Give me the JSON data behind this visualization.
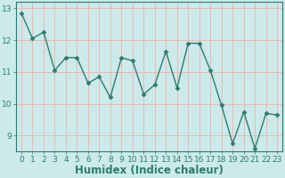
{
  "x": [
    0,
    1,
    2,
    3,
    4,
    5,
    6,
    7,
    8,
    9,
    10,
    11,
    12,
    13,
    14,
    15,
    16,
    17,
    18,
    19,
    20,
    21,
    22,
    23
  ],
  "y": [
    12.85,
    12.05,
    12.25,
    11.05,
    11.45,
    11.45,
    10.65,
    10.85,
    10.2,
    11.45,
    11.35,
    10.3,
    10.6,
    11.65,
    10.5,
    11.9,
    11.9,
    11.05,
    9.95,
    8.75,
    9.75,
    8.6,
    9.7,
    9.65
  ],
  "line_color": "#2d7c6e",
  "marker": "D",
  "marker_size": 2.5,
  "line_width": 1.0,
  "xlabel": "Humidex (Indice chaleur)",
  "xlim": [
    -0.5,
    23.5
  ],
  "ylim": [
    8.5,
    13.2
  ],
  "yticks": [
    9,
    10,
    11,
    12,
    13
  ],
  "xticks": [
    0,
    1,
    2,
    3,
    4,
    5,
    6,
    7,
    8,
    9,
    10,
    11,
    12,
    13,
    14,
    15,
    16,
    17,
    18,
    19,
    20,
    21,
    22,
    23
  ],
  "bg_color": "#cceaea",
  "grid_color": "#e8b8b8",
  "tick_color": "#2d7c6e",
  "tick_label_size": 6.5,
  "xlabel_size": 8.5,
  "xlabel_color": "#2d7c6e"
}
